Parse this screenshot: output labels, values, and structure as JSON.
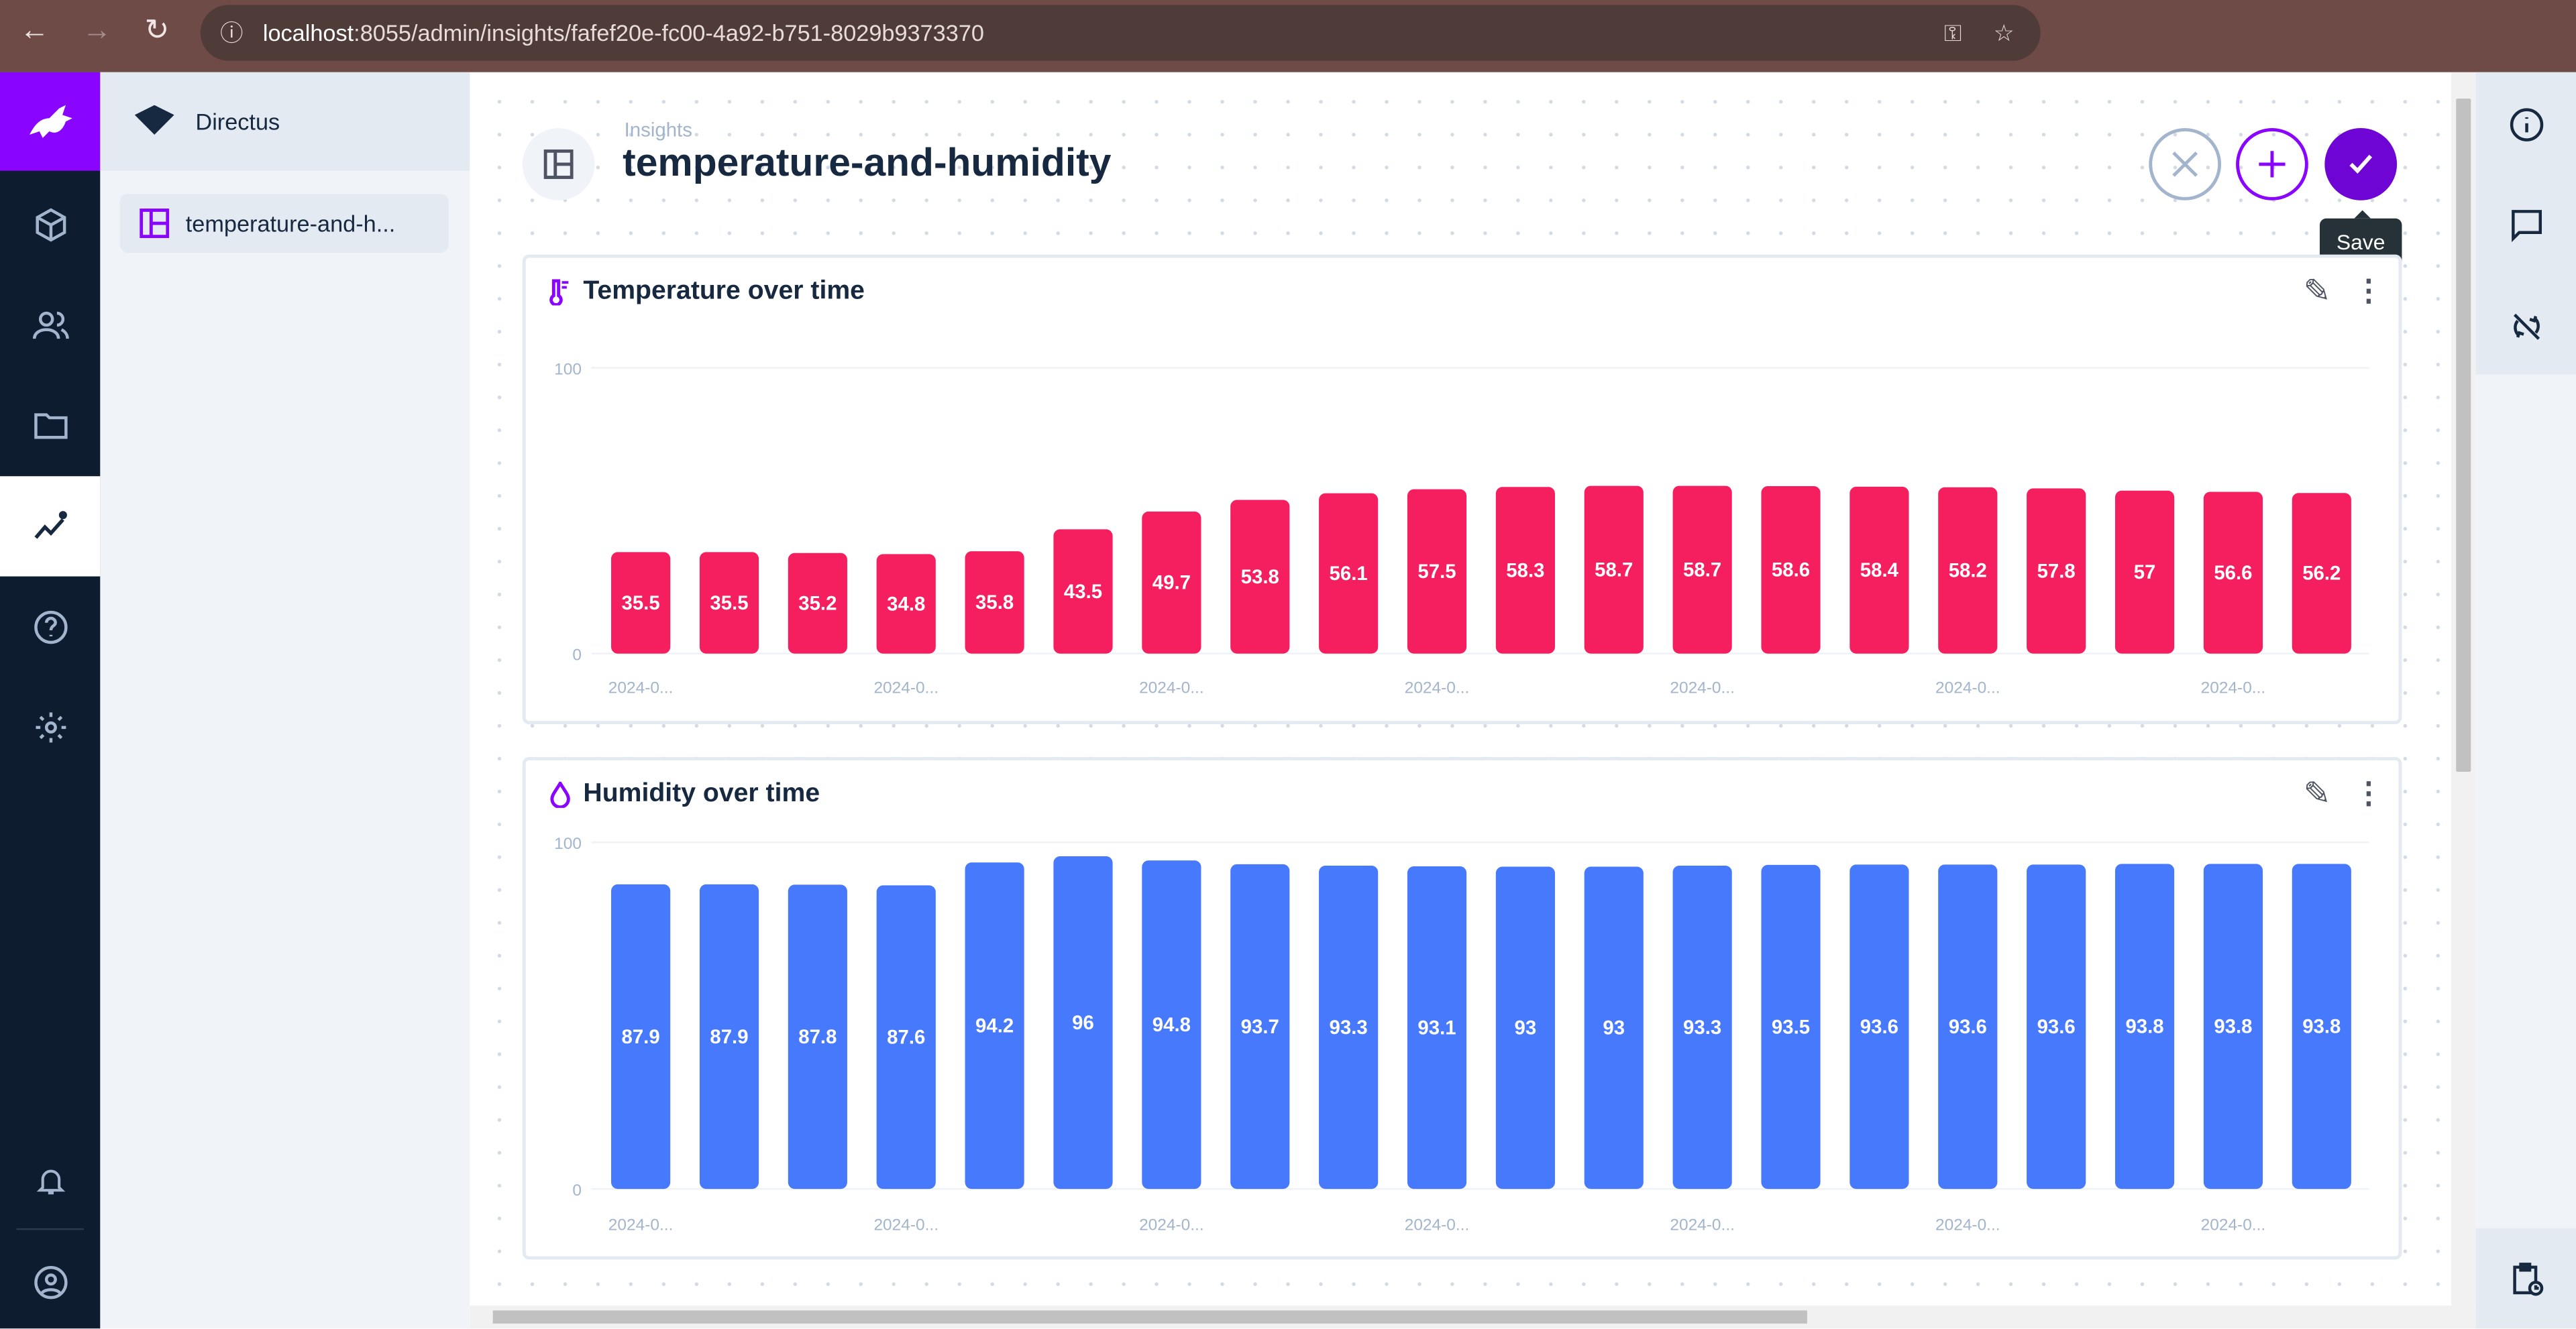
{
  "browser": {
    "url_host": "localhost",
    "url_path": ":8055/admin/insights/fafef20e-fc00-4a92-b751-8029b9373370"
  },
  "nav": {
    "project": "Directus",
    "items": [
      {
        "label": "temperature-and-h..."
      }
    ]
  },
  "header": {
    "breadcrumb": "Insights",
    "title": "temperature-and-humidity",
    "tooltip": "Save"
  },
  "colors": {
    "brand": "#8a05ff",
    "save": "#6e05d5",
    "temperature": "#f51f5f",
    "humidity": "#4779fd"
  },
  "chart_data": [
    {
      "type": "bar",
      "title": "Temperature over time",
      "icon": "thermometer-icon",
      "ylim": [
        0,
        100
      ],
      "yticks": [
        "0",
        "100"
      ],
      "grid": true,
      "x_tick_labels": [
        "2024-0...",
        "2024-0...",
        "2024-0...",
        "2024-0...",
        "2024-0...",
        "2024-0...",
        "2024-0..."
      ],
      "values": [
        35.5,
        35.5,
        35.2,
        34.8,
        35.8,
        43.5,
        49.7,
        53.8,
        56.1,
        57.5,
        58.3,
        58.7,
        58.7,
        58.6,
        58.4,
        58.2,
        57.8,
        57,
        56.6,
        56.2
      ]
    },
    {
      "type": "bar",
      "title": "Humidity over time",
      "icon": "water-drop-icon",
      "ylim": [
        0,
        100
      ],
      "yticks": [
        "0",
        "100"
      ],
      "grid": true,
      "x_tick_labels": [
        "2024-0...",
        "2024-0...",
        "2024-0...",
        "2024-0...",
        "2024-0...",
        "2024-0...",
        "2024-0..."
      ],
      "values": [
        87.9,
        87.9,
        87.8,
        87.6,
        94.2,
        96,
        94.8,
        93.7,
        93.3,
        93.1,
        93,
        93,
        93.3,
        93.5,
        93.6,
        93.6,
        93.6,
        93.8,
        93.8,
        93.8
      ]
    }
  ]
}
